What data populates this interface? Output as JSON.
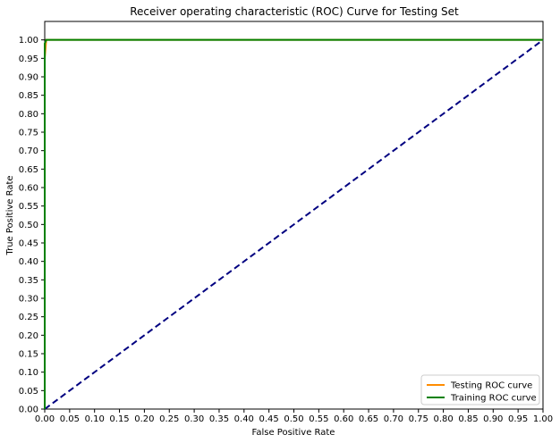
{
  "chart_data": {
    "type": "line",
    "title": "Receiver operating characteristic (ROC) Curve for Testing Set",
    "xlabel": "False Positive Rate",
    "ylabel": "True Positive Rate",
    "xlim": [
      0,
      1
    ],
    "ylim": [
      0,
      1.05
    ],
    "xticks": [
      "0.00",
      "0.05",
      "0.10",
      "0.15",
      "0.20",
      "0.25",
      "0.30",
      "0.35",
      "0.40",
      "0.45",
      "0.50",
      "0.55",
      "0.60",
      "0.65",
      "0.70",
      "0.75",
      "0.80",
      "0.85",
      "0.90",
      "0.95",
      "1.00"
    ],
    "yticks": [
      "0.00",
      "0.05",
      "0.10",
      "0.15",
      "0.20",
      "0.25",
      "0.30",
      "0.35",
      "0.40",
      "0.45",
      "0.50",
      "0.55",
      "0.60",
      "0.65",
      "0.70",
      "0.75",
      "0.80",
      "0.85",
      "0.90",
      "0.95",
      "1.00"
    ],
    "grid": false,
    "legend_position": "bottom-right",
    "series": [
      {
        "name": "Testing ROC curve",
        "color": "#ff8c00",
        "style": "solid",
        "x": [
          0.0,
          0.0,
          0.003,
          1.0
        ],
        "y": [
          0.0,
          0.95,
          1.0,
          1.0
        ]
      },
      {
        "name": "Training ROC curve",
        "color": "#008000",
        "style": "solid",
        "x": [
          0.0,
          0.0,
          0.003,
          1.0
        ],
        "y": [
          0.0,
          0.99,
          1.0,
          1.0
        ]
      },
      {
        "color": "#000080",
        "style": "dashed",
        "x": [
          0.0,
          1.0
        ],
        "y": [
          0.0,
          1.0
        ]
      }
    ]
  }
}
